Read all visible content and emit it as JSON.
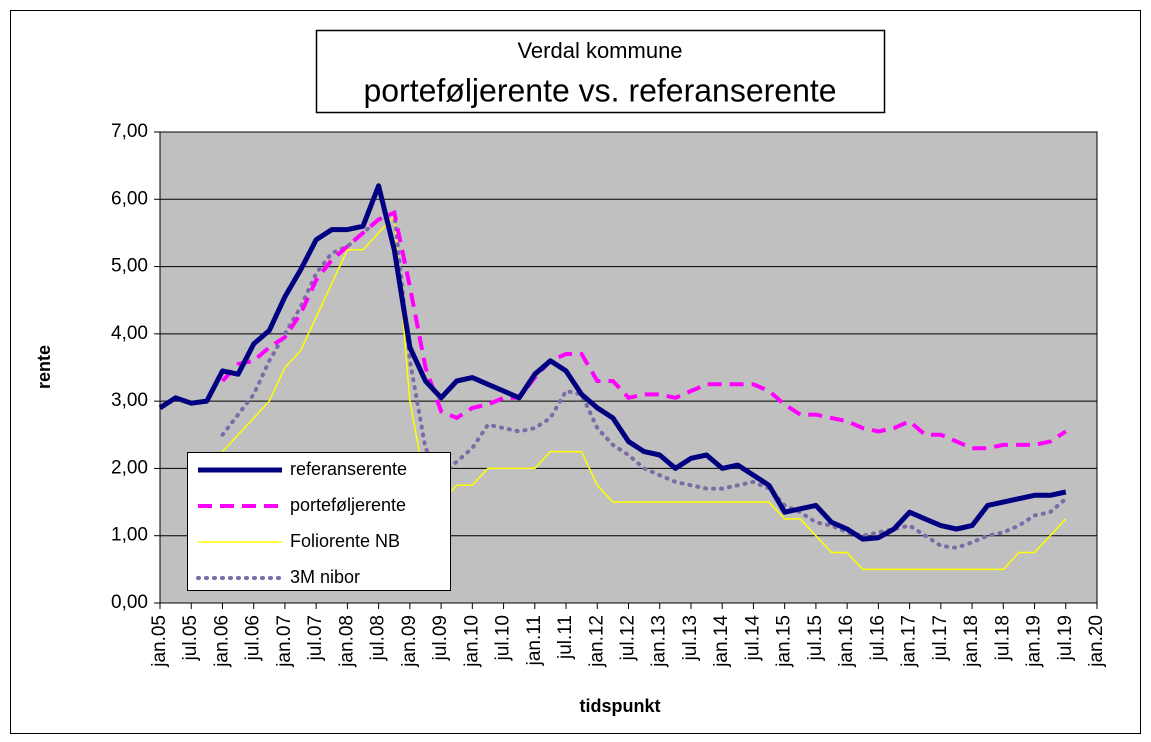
{
  "chart_data": {
    "type": "line",
    "title": "Verdal kommune",
    "subtitle": "porteføljerente vs. referanserente",
    "ylabel": "rente",
    "xlabel": "tidspunkt",
    "categories": [
      "jan.05",
      null,
      "jul.05",
      null,
      "jan.06",
      null,
      "jul.06",
      null,
      "jan.07",
      null,
      "jul.07",
      null,
      "jan.08",
      null,
      "jul.08",
      null,
      "jan.09",
      null,
      "jul.09",
      null,
      "jan.10",
      null,
      "jul.10",
      null,
      "jan.11",
      null,
      "jul.11",
      null,
      "jan.12",
      null,
      "jul.12",
      null,
      "jan.13",
      null,
      "jul.13",
      null,
      "jan.14",
      null,
      "jul.14",
      null,
      "jan.15",
      null,
      "jul.15",
      null,
      "jan.16",
      null,
      "jul.16",
      null,
      "jan.17",
      null,
      "jul.17",
      null,
      "jan.18",
      null,
      "jul.18",
      null,
      "jan.19",
      null,
      "jul.19",
      null,
      "jan.20"
    ],
    "series": [
      {
        "name": "Foliorente NB",
        "color": "#ffff00",
        "style": "thin",
        "values": [
          null,
          null,
          null,
          null,
          2.25,
          2.5,
          2.75,
          3.0,
          3.5,
          3.75,
          4.25,
          4.75,
          5.25,
          5.25,
          5.5,
          5.75,
          3.0,
          1.75,
          1.5,
          1.75,
          1.75,
          2.0,
          2.0,
          2.0,
          2.0,
          2.25,
          2.25,
          2.25,
          1.75,
          1.5,
          1.5,
          1.5,
          1.5,
          1.5,
          1.5,
          1.5,
          1.5,
          1.5,
          1.5,
          1.5,
          1.25,
          1.25,
          1.0,
          0.75,
          0.75,
          0.5,
          0.5,
          0.5,
          0.5,
          0.5,
          0.5,
          0.5,
          0.5,
          0.5,
          0.5,
          0.75,
          0.75,
          1.0,
          1.25,
          null,
          null
        ]
      },
      {
        "name": "3M nibor",
        "color": "#7b6ba6",
        "style": "dotted",
        "values": [
          null,
          null,
          null,
          null,
          2.5,
          2.8,
          3.1,
          3.6,
          4.0,
          4.4,
          4.9,
          5.2,
          5.3,
          5.5,
          5.7,
          5.8,
          3.6,
          2.3,
          1.9,
          2.1,
          2.3,
          2.65,
          2.6,
          2.55,
          2.6,
          2.75,
          3.15,
          3.1,
          2.6,
          2.35,
          2.2,
          2.0,
          1.9,
          1.8,
          1.75,
          1.7,
          1.7,
          1.75,
          1.8,
          1.7,
          1.45,
          1.35,
          1.2,
          1.15,
          1.05,
          1.0,
          1.05,
          1.1,
          1.15,
          1.0,
          0.85,
          0.82,
          0.9,
          1.0,
          1.05,
          1.15,
          1.3,
          1.35,
          1.55,
          null,
          null
        ]
      },
      {
        "name": "porteføljerente",
        "color": "#ff00ff",
        "style": "dashed",
        "values": [
          null,
          null,
          null,
          null,
          3.3,
          3.55,
          3.6,
          3.8,
          3.95,
          4.3,
          4.8,
          5.1,
          5.3,
          5.5,
          5.7,
          5.8,
          4.7,
          3.5,
          2.85,
          2.75,
          2.9,
          2.95,
          3.05,
          3.05,
          3.35,
          3.6,
          3.7,
          3.7,
          3.3,
          3.3,
          3.05,
          3.1,
          3.1,
          3.05,
          3.15,
          3.25,
          3.25,
          3.25,
          3.25,
          3.15,
          2.95,
          2.8,
          2.8,
          2.75,
          2.7,
          2.6,
          2.55,
          2.6,
          2.7,
          2.5,
          2.5,
          2.4,
          2.3,
          2.3,
          2.35,
          2.35,
          2.35,
          2.4,
          2.55,
          null,
          null
        ]
      },
      {
        "name": "referanserente",
        "color": "#000080",
        "style": "thick",
        "values": [
          2.9,
          3.05,
          2.97,
          3.0,
          3.45,
          3.4,
          3.85,
          4.05,
          4.55,
          4.95,
          5.4,
          5.55,
          5.55,
          5.6,
          6.2,
          5.25,
          3.8,
          3.3,
          3.05,
          3.3,
          3.35,
          3.25,
          3.15,
          3.05,
          3.4,
          3.6,
          3.45,
          3.1,
          2.9,
          2.75,
          2.4,
          2.25,
          2.2,
          2.0,
          2.15,
          2.2,
          2.0,
          2.05,
          1.9,
          1.75,
          1.35,
          1.4,
          1.45,
          1.2,
          1.1,
          0.95,
          0.97,
          1.1,
          1.35,
          1.25,
          1.15,
          1.1,
          1.15,
          1.45,
          1.5,
          1.55,
          1.6,
          1.6,
          1.65,
          null,
          null
        ]
      }
    ],
    "legend_order": [
      3,
      2,
      0,
      1
    ],
    "ylim": [
      0,
      7
    ],
    "yticks": [
      {
        "value": 0,
        "label": "0,00"
      },
      {
        "value": 1,
        "label": "1,00"
      },
      {
        "value": 2,
        "label": "2,00"
      },
      {
        "value": 3,
        "label": "3,00"
      },
      {
        "value": 4,
        "label": "4,00"
      },
      {
        "value": 5,
        "label": "5,00"
      },
      {
        "value": 6,
        "label": "6,00"
      },
      {
        "value": 7,
        "label": "7,00"
      }
    ],
    "grid": true,
    "legend": "lower left"
  }
}
